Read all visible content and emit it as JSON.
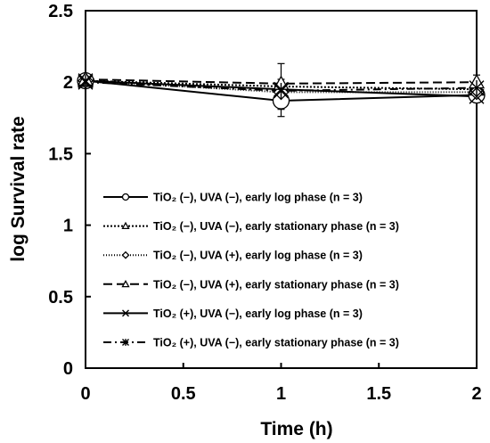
{
  "chart_data": {
    "type": "line",
    "xlabel": "Time (h)",
    "ylabel": "log Survival rate",
    "xlim": [
      0,
      2
    ],
    "ylim": [
      0,
      2.5
    ],
    "xticks": [
      "0",
      "0.5",
      "1",
      "1.5",
      "2"
    ],
    "yticks": [
      "0",
      "0.5",
      "1",
      "1.5",
      "2",
      "2.5"
    ],
    "x": [
      0,
      1,
      2
    ],
    "grid": false,
    "legend_position": "bottom-right",
    "series": [
      {
        "name": "TiO₂ (−), UVA (−),  early log phase (n = 3)",
        "values": [
          2.01,
          1.87,
          1.91
        ],
        "errors": [
          0.02,
          0.11,
          0.04
        ],
        "line": "solid",
        "marker": "circle"
      },
      {
        "name": "TiO₂ (−), UVA (−),  early stationary phase (n = 3)",
        "values": [
          2.01,
          1.97,
          1.95
        ],
        "errors": [
          0.02,
          0.16,
          0.06
        ],
        "line": "dotted",
        "marker": "triangle"
      },
      {
        "name": "TiO₂ (−), UVA (+),  early log phase (n = 3)",
        "values": [
          2.01,
          1.93,
          1.93
        ],
        "errors": [
          0.02,
          0.03,
          0.03
        ],
        "line": "fine-dotted",
        "marker": "diamond"
      },
      {
        "name": "TiO₂ (−), UVA (+),  early stationary phase (n = 3)",
        "values": [
          2.02,
          1.99,
          2.0
        ],
        "errors": [
          0.02,
          0.03,
          0.05
        ],
        "line": "dashed",
        "marker": "triangle"
      },
      {
        "name": "TiO₂ (+), UVA (−),  early log phase (n = 3)",
        "values": [
          2.01,
          1.95,
          1.9
        ],
        "errors": [
          0.02,
          0.03,
          0.03
        ],
        "line": "solid",
        "marker": "x"
      },
      {
        "name": "TiO₂ (+), UVA (−),  early stationary phase (n = 3)",
        "values": [
          2.0,
          1.94,
          1.96
        ],
        "errors": [
          0.02,
          0.03,
          0.04
        ],
        "line": "dash-dot",
        "marker": "star"
      }
    ]
  }
}
